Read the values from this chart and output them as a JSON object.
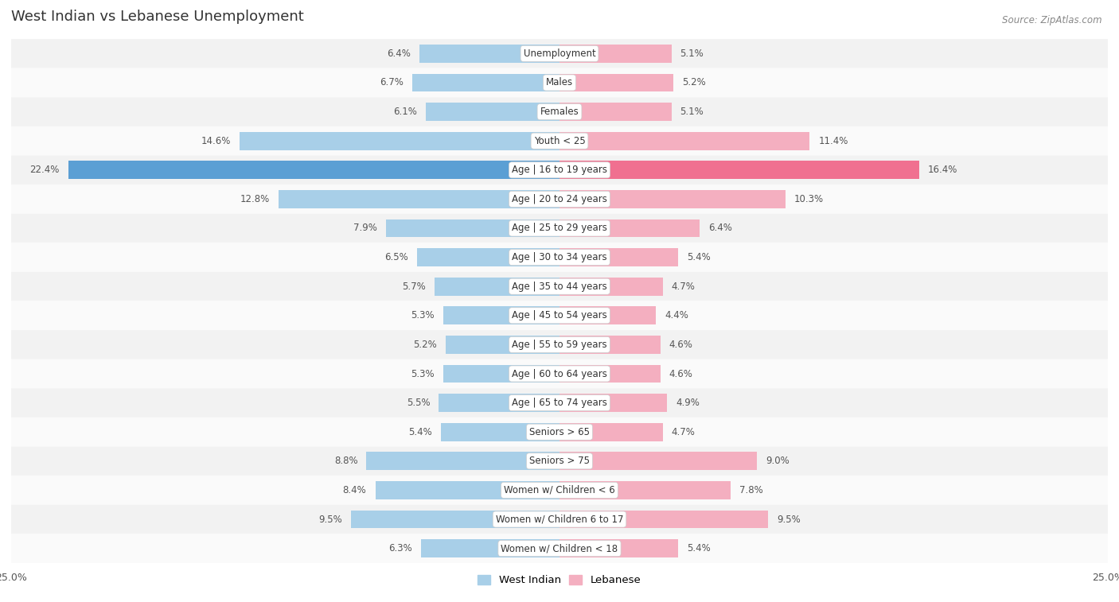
{
  "title": "West Indian vs Lebanese Unemployment",
  "source": "Source: ZipAtlas.com",
  "categories": [
    "Unemployment",
    "Males",
    "Females",
    "Youth < 25",
    "Age | 16 to 19 years",
    "Age | 20 to 24 years",
    "Age | 25 to 29 years",
    "Age | 30 to 34 years",
    "Age | 35 to 44 years",
    "Age | 45 to 54 years",
    "Age | 55 to 59 years",
    "Age | 60 to 64 years",
    "Age | 65 to 74 years",
    "Seniors > 65",
    "Seniors > 75",
    "Women w/ Children < 6",
    "Women w/ Children 6 to 17",
    "Women w/ Children < 18"
  ],
  "west_indian": [
    6.4,
    6.7,
    6.1,
    14.6,
    22.4,
    12.8,
    7.9,
    6.5,
    5.7,
    5.3,
    5.2,
    5.3,
    5.5,
    5.4,
    8.8,
    8.4,
    9.5,
    6.3
  ],
  "lebanese": [
    5.1,
    5.2,
    5.1,
    11.4,
    16.4,
    10.3,
    6.4,
    5.4,
    4.7,
    4.4,
    4.6,
    4.6,
    4.9,
    4.7,
    9.0,
    7.8,
    9.5,
    5.4
  ],
  "west_indian_color": "#a8cfe8",
  "lebanese_color": "#f4afc0",
  "highlight_west_indian_color": "#5b9fd4",
  "highlight_lebanese_color": "#f07090",
  "axis_max": 25.0,
  "bg_color": "#ffffff",
  "row_bg_even": "#f2f2f2",
  "row_bg_odd": "#fafafa",
  "bar_height": 0.62,
  "legend_west_indian": "West Indian",
  "legend_lebanese": "Lebanese",
  "title_fontsize": 13,
  "label_fontsize": 8.5,
  "val_fontsize": 8.5
}
